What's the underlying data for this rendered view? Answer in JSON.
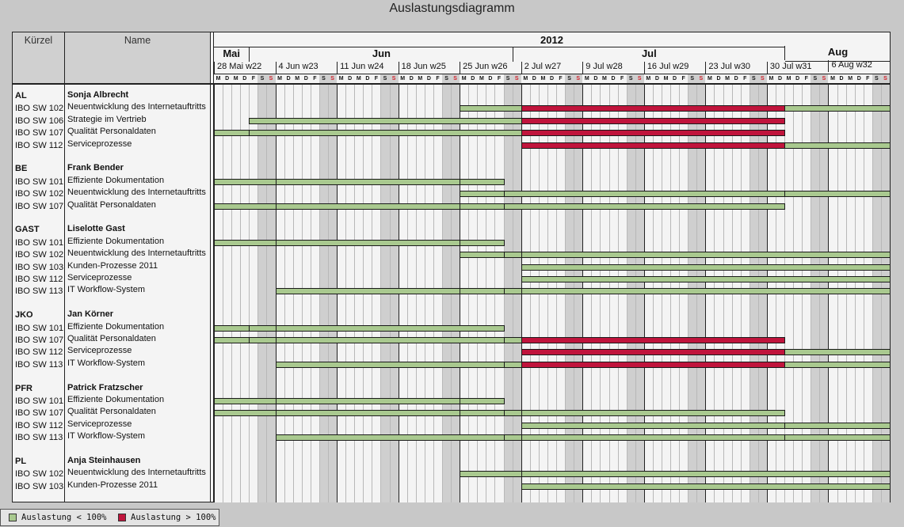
{
  "title": "Auslastungsdiagramm",
  "columns": {
    "kuerzel": "Kürzel",
    "name": "Name"
  },
  "colors": {
    "ok": "#a9c98f",
    "over": "#c0143c",
    "weekend": "#cfcfcf",
    "weekday": "#f4f4f4",
    "sunday_letter": "#d0202a"
  },
  "chart_data": {
    "type": "gantt",
    "year": "2012",
    "months": [
      "Mai",
      "Jun",
      "Jul",
      "Aug"
    ],
    "weeks": [
      "28 Mai w22",
      "4 Jun w23",
      "11 Jun w24",
      "18 Jun w25",
      "25 Jun w26",
      "2 Jul w27",
      "9 Jul w28",
      "16 Jul w29",
      "23 Jul w30",
      "30 Jul w31",
      "6 Aug w32"
    ],
    "day_letters": [
      "M",
      "D",
      "M",
      "D",
      "F",
      "S",
      "S"
    ],
    "groups": [
      {
        "kuerzel": "AL",
        "name": "Sonja Albrecht",
        "tasks": [
          {
            "code": "IBO SW 102",
            "name": "Neuentwicklung des Internetauftritts",
            "segments": [
              [
                "2012-06-25",
                "2012-07-01",
                "ok"
              ],
              [
                "2012-07-02",
                "2012-07-31",
                "over"
              ],
              [
                "2012-08-01",
                "2012-08-12",
                "ok"
              ]
            ]
          },
          {
            "code": "IBO SW 106",
            "name": "Strategie im Vertrieb",
            "segments": [
              [
                "2012-06-01",
                "2012-07-01",
                "ok"
              ],
              [
                "2012-07-02",
                "2012-07-31",
                "over"
              ]
            ]
          },
          {
            "code": "IBO SW 107",
            "name": "Qualität Personaldaten",
            "segments": [
              [
                "2012-05-28",
                "2012-05-31",
                "ok"
              ],
              [
                "2012-06-01",
                "2012-07-01",
                "ok"
              ],
              [
                "2012-07-02",
                "2012-07-31",
                "over"
              ]
            ]
          },
          {
            "code": "IBO SW 112",
            "name": "Serviceprozesse",
            "segments": [
              [
                "2012-07-02",
                "2012-07-31",
                "over"
              ],
              [
                "2012-08-01",
                "2012-08-12",
                "ok"
              ]
            ]
          }
        ]
      },
      {
        "kuerzel": "BE",
        "name": "Frank Bender",
        "tasks": [
          {
            "code": "IBO SW 101",
            "name": "Effiziente Dokumentation",
            "segments": [
              [
                "2012-05-28",
                "2012-06-03",
                "ok"
              ],
              [
                "2012-06-04",
                "2012-06-24",
                "ok"
              ],
              [
                "2012-06-25",
                "2012-06-29",
                "ok"
              ]
            ]
          },
          {
            "code": "IBO SW 102",
            "name": "Neuentwicklung des Internetauftritts",
            "segments": [
              [
                "2012-06-25",
                "2012-06-29",
                "ok"
              ],
              [
                "2012-06-30",
                "2012-07-31",
                "ok"
              ],
              [
                "2012-08-01",
                "2012-08-12",
                "ok"
              ]
            ]
          },
          {
            "code": "IBO SW 107",
            "name": "Qualität Personaldaten",
            "segments": [
              [
                "2012-05-28",
                "2012-06-03",
                "ok"
              ],
              [
                "2012-06-04",
                "2012-06-24",
                "ok"
              ],
              [
                "2012-06-25",
                "2012-06-29",
                "ok"
              ],
              [
                "2012-06-30",
                "2012-07-31",
                "ok"
              ]
            ]
          }
        ]
      },
      {
        "kuerzel": "GAST",
        "name": "Liselotte Gast",
        "tasks": [
          {
            "code": "IBO SW 101",
            "name": "Effiziente Dokumentation",
            "segments": [
              [
                "2012-05-28",
                "2012-06-03",
                "ok"
              ],
              [
                "2012-06-04",
                "2012-06-24",
                "ok"
              ],
              [
                "2012-06-25",
                "2012-06-29",
                "ok"
              ]
            ]
          },
          {
            "code": "IBO SW 102",
            "name": "Neuentwicklung des Internetauftritts",
            "segments": [
              [
                "2012-06-25",
                "2012-06-29",
                "ok"
              ],
              [
                "2012-06-30",
                "2012-07-01",
                "ok"
              ],
              [
                "2012-07-02",
                "2012-08-12",
                "ok"
              ]
            ]
          },
          {
            "code": "IBO SW 103",
            "name": "Kunden-Prozesse 2011",
            "segments": [
              [
                "2012-07-02",
                "2012-08-12",
                "ok"
              ]
            ]
          },
          {
            "code": "IBO SW 112",
            "name": "Serviceprozesse",
            "segments": [
              [
                "2012-07-02",
                "2012-08-12",
                "ok"
              ]
            ]
          },
          {
            "code": "IBO SW 113",
            "name": "IT Workflow-System",
            "segments": [
              [
                "2012-06-04",
                "2012-06-24",
                "ok"
              ],
              [
                "2012-06-25",
                "2012-06-29",
                "ok"
              ],
              [
                "2012-06-30",
                "2012-07-01",
                "ok"
              ],
              [
                "2012-07-02",
                "2012-08-12",
                "ok"
              ]
            ]
          }
        ]
      },
      {
        "kuerzel": "JKO",
        "name": "Jan Körner",
        "tasks": [
          {
            "code": "IBO SW 101",
            "name": "Effiziente Dokumentation",
            "segments": [
              [
                "2012-05-28",
                "2012-05-31",
                "ok"
              ],
              [
                "2012-06-01",
                "2012-06-03",
                "ok"
              ],
              [
                "2012-06-04",
                "2012-06-29",
                "ok"
              ]
            ]
          },
          {
            "code": "IBO SW 107",
            "name": "Qualität Personaldaten",
            "segments": [
              [
                "2012-05-28",
                "2012-05-31",
                "ok"
              ],
              [
                "2012-06-01",
                "2012-06-03",
                "ok"
              ],
              [
                "2012-06-04",
                "2012-06-29",
                "ok"
              ],
              [
                "2012-06-30",
                "2012-07-01",
                "ok"
              ],
              [
                "2012-07-02",
                "2012-07-31",
                "over"
              ]
            ]
          },
          {
            "code": "IBO SW 112",
            "name": "Serviceprozesse",
            "segments": [
              [
                "2012-07-02",
                "2012-07-31",
                "over"
              ],
              [
                "2012-08-01",
                "2012-08-12",
                "ok"
              ]
            ]
          },
          {
            "code": "IBO SW 113",
            "name": "IT Workflow-System",
            "segments": [
              [
                "2012-06-04",
                "2012-06-29",
                "ok"
              ],
              [
                "2012-06-30",
                "2012-07-01",
                "ok"
              ],
              [
                "2012-07-02",
                "2012-07-31",
                "over"
              ],
              [
                "2012-08-01",
                "2012-08-12",
                "ok"
              ]
            ]
          }
        ]
      },
      {
        "kuerzel": "PFR",
        "name": "Patrick Fratzscher",
        "tasks": [
          {
            "code": "IBO SW 101",
            "name": "Effiziente Dokumentation",
            "segments": [
              [
                "2012-05-28",
                "2012-06-03",
                "ok"
              ],
              [
                "2012-06-04",
                "2012-06-24",
                "ok"
              ],
              [
                "2012-06-25",
                "2012-06-29",
                "ok"
              ]
            ]
          },
          {
            "code": "IBO SW 107",
            "name": "Qualität Personaldaten",
            "segments": [
              [
                "2012-05-28",
                "2012-06-03",
                "ok"
              ],
              [
                "2012-06-04",
                "2012-06-24",
                "ok"
              ],
              [
                "2012-06-25",
                "2012-06-29",
                "ok"
              ],
              [
                "2012-06-30",
                "2012-07-01",
                "ok"
              ],
              [
                "2012-07-02",
                "2012-07-31",
                "ok"
              ]
            ]
          },
          {
            "code": "IBO SW 112",
            "name": "Serviceprozesse",
            "segments": [
              [
                "2012-07-02",
                "2012-07-31",
                "ok"
              ],
              [
                "2012-08-01",
                "2012-08-12",
                "ok"
              ]
            ]
          },
          {
            "code": "IBO SW 113",
            "name": "IT Workflow-System",
            "segments": [
              [
                "2012-06-04",
                "2012-06-29",
                "ok"
              ],
              [
                "2012-06-30",
                "2012-07-01",
                "ok"
              ],
              [
                "2012-07-02",
                "2012-07-31",
                "ok"
              ],
              [
                "2012-08-01",
                "2012-08-12",
                "ok"
              ]
            ]
          }
        ]
      },
      {
        "kuerzel": "PL",
        "name": "Anja Steinhausen",
        "tasks": [
          {
            "code": "IBO SW 102",
            "name": "Neuentwicklung des Internetauftritts",
            "segments": [
              [
                "2012-06-25",
                "2012-07-01",
                "ok"
              ],
              [
                "2012-07-02",
                "2012-08-12",
                "ok"
              ]
            ]
          },
          {
            "code": "IBO SW 103",
            "name": "Kunden-Prozesse 2011",
            "segments": [
              [
                "2012-07-02",
                "2012-08-12",
                "ok"
              ]
            ]
          }
        ]
      }
    ],
    "legend": [
      {
        "label": "Auslastung < 100%",
        "status": "ok"
      },
      {
        "label": "Auslastung > 100%",
        "status": "over"
      }
    ]
  }
}
